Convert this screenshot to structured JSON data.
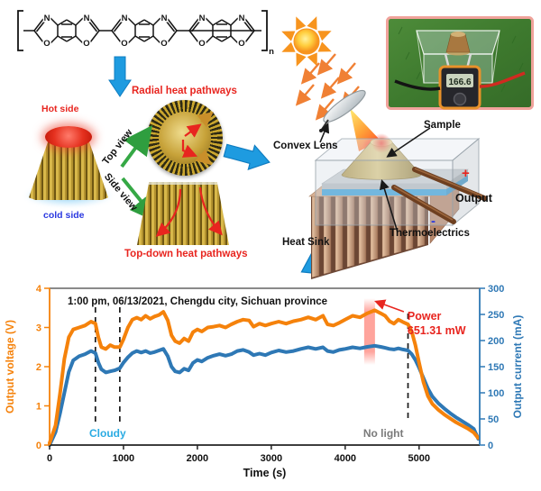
{
  "molecule": {
    "atom_n": "N",
    "atom_o": "O",
    "subscript": "n"
  },
  "labels": {
    "radial": "Radial heat pathways",
    "topdown": "Top-down heat pathways",
    "hot_side": "Hot side",
    "cold_side": "cold side",
    "top_view": "Top view",
    "side_view": "Side view",
    "convex_lens": "Convex Lens",
    "sample": "Sample",
    "output": "Output",
    "plus": "+",
    "minus": "-",
    "thermoelectrics": "Thermoelectrics",
    "heat_sink": "Heat Sink"
  },
  "inset": {
    "meter_reading": "166.6"
  },
  "colors": {
    "accent_red": "#E8251F",
    "orange_curve": "#F5820B",
    "blue_curve": "#2E78B5",
    "cyan_annotation": "#29ABE2",
    "gray_annotation": "#7a7a7a",
    "blue_arrow": "#1E9BE0",
    "green_arrow": "#35A845"
  },
  "chart_data": {
    "type": "line",
    "title": "1:00 pm, 06/13/2021, Chengdu city, Sichuan province",
    "xlabel": "Time (s)",
    "ylabel_left": "Output voltage (V)",
    "ylabel_right": "Output current (mA)",
    "xlim": [
      0,
      5820
    ],
    "ylim_left": [
      0,
      4
    ],
    "ylim_right": [
      0,
      300
    ],
    "x_ticks": [
      0,
      1000,
      2000,
      3000,
      4000,
      5000
    ],
    "y_ticks_left": [
      0,
      1,
      2,
      3,
      4
    ],
    "y_ticks_right": [
      0,
      50,
      100,
      150,
      200,
      250,
      300
    ],
    "grid": false,
    "legend": "none",
    "series": [
      {
        "name": "Output current",
        "axis": "right",
        "color": "#2E78B5",
        "points": [
          [
            0,
            0
          ],
          [
            80,
            25
          ],
          [
            140,
            60
          ],
          [
            200,
            100
          ],
          [
            260,
            140
          ],
          [
            320,
            162
          ],
          [
            400,
            170
          ],
          [
            480,
            174
          ],
          [
            560,
            180
          ],
          [
            620,
            176
          ],
          [
            660,
            158
          ],
          [
            700,
            145
          ],
          [
            760,
            139
          ],
          [
            820,
            141
          ],
          [
            880,
            143
          ],
          [
            950,
            147
          ],
          [
            1000,
            158
          ],
          [
            1060,
            168
          ],
          [
            1120,
            176
          ],
          [
            1180,
            180
          ],
          [
            1240,
            177
          ],
          [
            1300,
            180
          ],
          [
            1360,
            176
          ],
          [
            1420,
            178
          ],
          [
            1480,
            181
          ],
          [
            1540,
            184
          ],
          [
            1600,
            170
          ],
          [
            1650,
            150
          ],
          [
            1700,
            141
          ],
          [
            1760,
            139
          ],
          [
            1820,
            146
          ],
          [
            1880,
            143
          ],
          [
            1940,
            157
          ],
          [
            2000,
            163
          ],
          [
            2060,
            160
          ],
          [
            2140,
            167
          ],
          [
            2220,
            171
          ],
          [
            2300,
            174
          ],
          [
            2380,
            171
          ],
          [
            2460,
            174
          ],
          [
            2540,
            180
          ],
          [
            2620,
            182
          ],
          [
            2700,
            178
          ],
          [
            2760,
            172
          ],
          [
            2840,
            175
          ],
          [
            2920,
            172
          ],
          [
            3000,
            177
          ],
          [
            3100,
            181
          ],
          [
            3200,
            178
          ],
          [
            3300,
            180
          ],
          [
            3400,
            184
          ],
          [
            3500,
            187
          ],
          [
            3600,
            184
          ],
          [
            3700,
            187
          ],
          [
            3760,
            180
          ],
          [
            3840,
            178
          ],
          [
            3920,
            182
          ],
          [
            4000,
            184
          ],
          [
            4100,
            187
          ],
          [
            4200,
            185
          ],
          [
            4300,
            188
          ],
          [
            4400,
            190
          ],
          [
            4480,
            188
          ],
          [
            4540,
            186
          ],
          [
            4600,
            184
          ],
          [
            4660,
            183
          ],
          [
            4720,
            185
          ],
          [
            4780,
            183
          ],
          [
            4850,
            181
          ],
          [
            4900,
            174
          ],
          [
            4950,
            163
          ],
          [
            5000,
            148
          ],
          [
            5060,
            128
          ],
          [
            5120,
            108
          ],
          [
            5180,
            93
          ],
          [
            5260,
            80
          ],
          [
            5340,
            70
          ],
          [
            5420,
            61
          ],
          [
            5500,
            53
          ],
          [
            5580,
            46
          ],
          [
            5660,
            39
          ],
          [
            5740,
            31
          ],
          [
            5800,
            12
          ]
        ]
      },
      {
        "name": "Output voltage",
        "axis": "left",
        "color": "#F5820B",
        "points": [
          [
            0,
            0.05
          ],
          [
            80,
            0.5
          ],
          [
            140,
            1.3
          ],
          [
            200,
            2.2
          ],
          [
            260,
            2.75
          ],
          [
            320,
            2.95
          ],
          [
            400,
            3.0
          ],
          [
            480,
            3.05
          ],
          [
            560,
            3.15
          ],
          [
            620,
            3.1
          ],
          [
            660,
            2.75
          ],
          [
            700,
            2.5
          ],
          [
            760,
            2.45
          ],
          [
            820,
            2.55
          ],
          [
            880,
            2.5
          ],
          [
            950,
            2.5
          ],
          [
            1000,
            2.7
          ],
          [
            1060,
            3.0
          ],
          [
            1120,
            3.2
          ],
          [
            1180,
            3.25
          ],
          [
            1240,
            3.2
          ],
          [
            1300,
            3.3
          ],
          [
            1360,
            3.22
          ],
          [
            1420,
            3.28
          ],
          [
            1480,
            3.32
          ],
          [
            1540,
            3.4
          ],
          [
            1600,
            3.18
          ],
          [
            1650,
            2.8
          ],
          [
            1700,
            2.65
          ],
          [
            1760,
            2.6
          ],
          [
            1820,
            2.72
          ],
          [
            1880,
            2.65
          ],
          [
            1940,
            2.88
          ],
          [
            2000,
            2.95
          ],
          [
            2060,
            2.9
          ],
          [
            2140,
            3.0
          ],
          [
            2220,
            3.02
          ],
          [
            2300,
            3.05
          ],
          [
            2380,
            3.0
          ],
          [
            2460,
            3.08
          ],
          [
            2540,
            3.15
          ],
          [
            2620,
            3.2
          ],
          [
            2700,
            3.18
          ],
          [
            2760,
            3.02
          ],
          [
            2840,
            3.1
          ],
          [
            2920,
            3.05
          ],
          [
            3000,
            3.1
          ],
          [
            3100,
            3.15
          ],
          [
            3200,
            3.1
          ],
          [
            3300,
            3.16
          ],
          [
            3400,
            3.2
          ],
          [
            3500,
            3.26
          ],
          [
            3600,
            3.2
          ],
          [
            3700,
            3.3
          ],
          [
            3760,
            3.08
          ],
          [
            3840,
            3.05
          ],
          [
            3920,
            3.12
          ],
          [
            4000,
            3.2
          ],
          [
            4100,
            3.3
          ],
          [
            4200,
            3.26
          ],
          [
            4300,
            3.36
          ],
          [
            4400,
            3.44
          ],
          [
            4480,
            3.36
          ],
          [
            4540,
            3.3
          ],
          [
            4600,
            3.16
          ],
          [
            4660,
            3.1
          ],
          [
            4720,
            3.2
          ],
          [
            4780,
            3.14
          ],
          [
            4850,
            3.08
          ],
          [
            4900,
            2.9
          ],
          [
            4950,
            2.55
          ],
          [
            5000,
            2.1
          ],
          [
            5060,
            1.6
          ],
          [
            5120,
            1.25
          ],
          [
            5180,
            1.05
          ],
          [
            5260,
            0.9
          ],
          [
            5340,
            0.78
          ],
          [
            5420,
            0.68
          ],
          [
            5500,
            0.58
          ],
          [
            5580,
            0.5
          ],
          [
            5660,
            0.42
          ],
          [
            5740,
            0.32
          ],
          [
            5800,
            0.18
          ]
        ]
      }
    ],
    "annotations": {
      "cloudy": {
        "text": "Cloudy",
        "color": "#29ABE2",
        "x_range": [
          620,
          950
        ]
      },
      "no_light": {
        "text": "No light",
        "color": "#7a7a7a",
        "x": 4850
      },
      "power": {
        "line1": "Power",
        "line2": "651.31 mW",
        "color": "#E8251F",
        "x_band": 4330
      }
    }
  }
}
